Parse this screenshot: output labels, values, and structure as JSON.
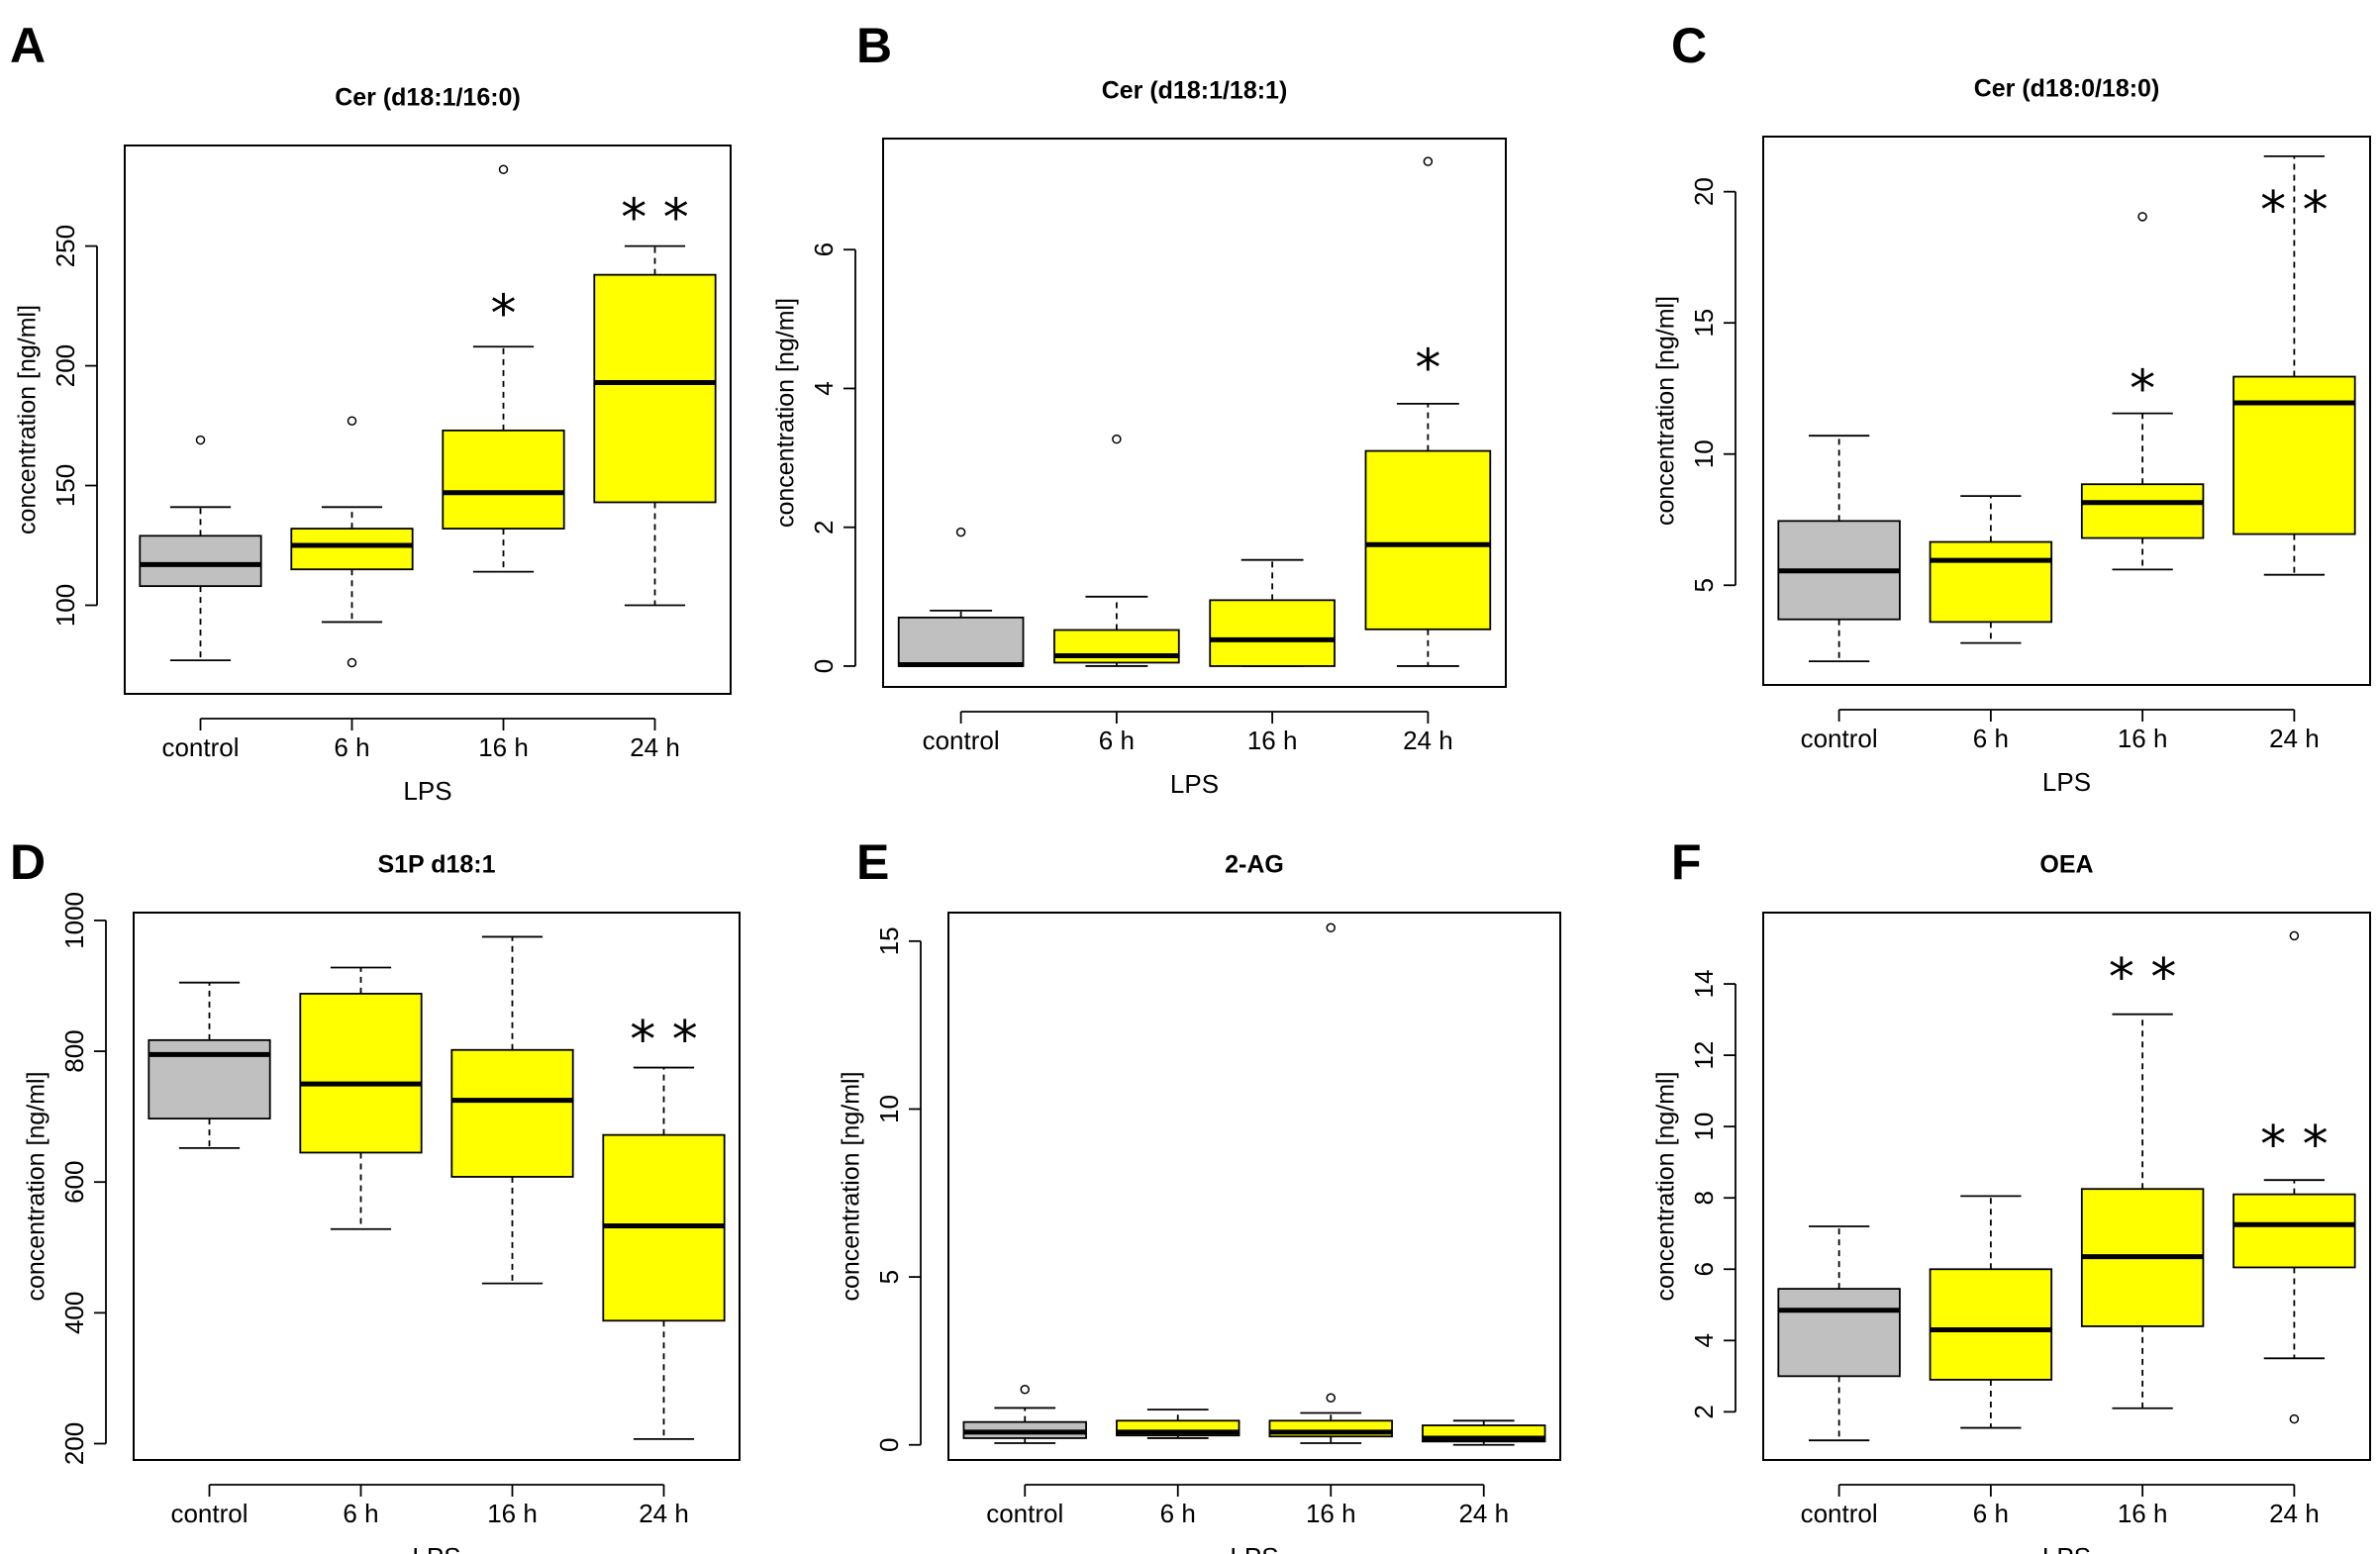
{
  "figure": {
    "colors": {
      "control": "#c0c0c0",
      "lps": "#ffff00",
      "stroke": "#000000"
    }
  },
  "chart_data": [
    {
      "panel": "A",
      "type": "boxplot",
      "title": "Cer (d18:1/16:0)",
      "xlabel": "LPS",
      "ylabel": "concentration [ng/ml]",
      "ylim": [
        63,
        292
      ],
      "yticks": [
        100,
        150,
        200,
        250
      ],
      "categories": [
        "control",
        "6 h",
        "16 h",
        "24 h"
      ],
      "boxes": [
        {
          "whisker_low": 77,
          "q1": 108,
          "median": 117,
          "q3": 129,
          "whisker_high": 141,
          "outliers": [
            169
          ]
        },
        {
          "whisker_low": 93,
          "q1": 115,
          "median": 125,
          "q3": 132,
          "whisker_high": 141,
          "outliers": [
            177,
            76
          ]
        },
        {
          "whisker_low": 114,
          "q1": 132,
          "median": 147,
          "q3": 173,
          "whisker_high": 208,
          "outliers": [
            282
          ]
        },
        {
          "whisker_low": 100,
          "q1": 143,
          "median": 193,
          "q3": 238,
          "whisker_high": 250,
          "outliers": []
        }
      ],
      "annotations": [
        {
          "category": "16 h",
          "label": "*",
          "y": 222
        },
        {
          "category": "24 h",
          "label": "* *",
          "y": 262
        }
      ]
    },
    {
      "panel": "B",
      "type": "boxplot",
      "title": "Cer (d18:1/18:1)",
      "xlabel": "LPS",
      "ylabel": "concentration [ng/ml]",
      "ylim": [
        -0.3,
        7.6
      ],
      "yticks": [
        0,
        2,
        4,
        6
      ],
      "categories": [
        "control",
        "6 h",
        "16 h",
        "24 h"
      ],
      "boxes": [
        {
          "whisker_low": 0,
          "q1": 0,
          "median": 0.02,
          "q3": 0.7,
          "whisker_high": 0.8,
          "outliers": [
            1.93
          ]
        },
        {
          "whisker_low": 0,
          "q1": 0.05,
          "median": 0.15,
          "q3": 0.52,
          "whisker_high": 1.0,
          "outliers": [
            3.27
          ]
        },
        {
          "whisker_low": 0,
          "q1": 0,
          "median": 0.38,
          "q3": 0.95,
          "whisker_high": 1.53,
          "outliers": []
        },
        {
          "whisker_low": 0,
          "q1": 0.53,
          "median": 1.75,
          "q3": 3.1,
          "whisker_high": 3.78,
          "outliers": [
            7.27
          ]
        }
      ],
      "annotations": [
        {
          "category": "24 h",
          "label": "*",
          "y": 4.3
        }
      ]
    },
    {
      "panel": "C",
      "type": "boxplot",
      "title": "Cer (d18:0/18:0)",
      "xlabel": "LPS",
      "ylabel": "concentration [ng/ml]",
      "ylim": [
        1.2,
        22.1
      ],
      "yticks": [
        5,
        10,
        15,
        20
      ],
      "categories": [
        "control",
        "6 h",
        "16 h",
        "24 h"
      ],
      "boxes": [
        {
          "whisker_low": 2.1,
          "q1": 3.7,
          "median": 5.55,
          "q3": 7.45,
          "whisker_high": 10.7,
          "outliers": []
        },
        {
          "whisker_low": 2.8,
          "q1": 3.6,
          "median": 5.95,
          "q3": 6.65,
          "whisker_high": 8.4,
          "outliers": []
        },
        {
          "whisker_low": 5.6,
          "q1": 6.8,
          "median": 8.15,
          "q3": 8.85,
          "whisker_high": 11.55,
          "outliers": [
            19.05
          ]
        },
        {
          "whisker_low": 5.4,
          "q1": 6.95,
          "median": 11.95,
          "q3": 12.95,
          "whisker_high": 21.35,
          "outliers": []
        }
      ],
      "annotations": [
        {
          "category": "16 h",
          "label": "*",
          "y": 12.5
        },
        {
          "category": "24 h",
          "label": "* *",
          "y": 19.3
        }
      ]
    },
    {
      "panel": "D",
      "type": "boxplot",
      "title": "S1P d18:1",
      "xlabel": "LPS",
      "ylabel": "concentration [ng/ml]",
      "ylim": [
        175,
        1012
      ],
      "yticks": [
        200,
        400,
        600,
        800,
        1000
      ],
      "categories": [
        "control",
        "6 h",
        "16 h",
        "24 h"
      ],
      "boxes": [
        {
          "whisker_low": 652,
          "q1": 697,
          "median": 795,
          "q3": 817,
          "whisker_high": 905,
          "outliers": []
        },
        {
          "whisker_low": 528,
          "q1": 645,
          "median": 750,
          "q3": 888,
          "whisker_high": 928,
          "outliers": []
        },
        {
          "whisker_low": 445,
          "q1": 608,
          "median": 725,
          "q3": 802,
          "whisker_high": 975,
          "outliers": []
        },
        {
          "whisker_low": 207,
          "q1": 388,
          "median": 533,
          "q3": 672,
          "whisker_high": 775,
          "outliers": []
        }
      ],
      "annotations": [
        {
          "category": "24 h",
          "label": "* *",
          "y": 818
        }
      ]
    },
    {
      "panel": "E",
      "type": "boxplot",
      "title": "2-AG",
      "xlabel": "LPS",
      "ylabel": "concentration [ng/ml]",
      "ylim": [
        -0.45,
        15.85
      ],
      "yticks": [
        0,
        5,
        10,
        15
      ],
      "categories": [
        "control",
        "6 h",
        "16 h",
        "24 h"
      ],
      "boxes": [
        {
          "whisker_low": 0.05,
          "q1": 0.2,
          "median": 0.38,
          "q3": 0.68,
          "whisker_high": 1.1,
          "outliers": [
            1.65
          ]
        },
        {
          "whisker_low": 0.2,
          "q1": 0.28,
          "median": 0.38,
          "q3": 0.72,
          "whisker_high": 1.05,
          "outliers": []
        },
        {
          "whisker_low": 0.05,
          "q1": 0.25,
          "median": 0.38,
          "q3": 0.72,
          "whisker_high": 0.95,
          "outliers": [
            15.4,
            1.4
          ]
        },
        {
          "whisker_low": 0,
          "q1": 0.1,
          "median": 0.2,
          "q3": 0.58,
          "whisker_high": 0.72,
          "outliers": []
        }
      ],
      "annotations": []
    },
    {
      "panel": "F",
      "type": "boxplot",
      "title": "OEA",
      "xlabel": "LPS",
      "ylabel": "concentration [ng/ml]",
      "ylim": [
        0.65,
        16.0
      ],
      "yticks": [
        2,
        4,
        6,
        8,
        10,
        12,
        14
      ],
      "categories": [
        "control",
        "6 h",
        "16 h",
        "24 h"
      ],
      "boxes": [
        {
          "whisker_low": 1.2,
          "q1": 3.0,
          "median": 4.85,
          "q3": 5.45,
          "whisker_high": 7.2,
          "outliers": []
        },
        {
          "whisker_low": 1.55,
          "q1": 2.9,
          "median": 4.3,
          "q3": 6.0,
          "whisker_high": 8.05,
          "outliers": []
        },
        {
          "whisker_low": 2.1,
          "q1": 4.4,
          "median": 6.35,
          "q3": 8.25,
          "whisker_high": 13.15,
          "outliers": []
        },
        {
          "whisker_low": 3.5,
          "q1": 6.05,
          "median": 7.25,
          "q3": 8.1,
          "whisker_high": 8.5,
          "outliers": [
            15.35,
            1.8
          ]
        }
      ],
      "annotations": [
        {
          "category": "16 h",
          "label": "* *",
          "y": 14.2
        },
        {
          "category": "24 h",
          "label": "* *",
          "y": 9.5
        }
      ]
    }
  ]
}
